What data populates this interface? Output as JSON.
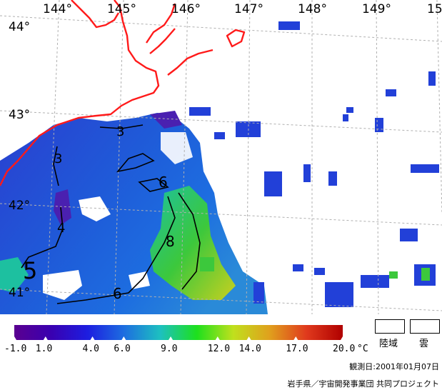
{
  "map": {
    "lon_labels": [
      "144°",
      "145°",
      "146°",
      "147°",
      "148°",
      "149°",
      "15"
    ],
    "lat_labels": [
      "44°",
      "43°",
      "42°",
      "41°"
    ],
    "contour_labels": [
      "3",
      "3",
      "4",
      "5",
      "6",
      "6",
      "8"
    ],
    "colors": {
      "coastline": "#ff1a1a",
      "graticule": "#b0b0b0",
      "ocean_cold": "#2a3fd0",
      "ocean_mid": "#1d6de0",
      "ocean_warm": "#3cc83c",
      "ocean_hot": "#c8d020"
    }
  },
  "colorbar": {
    "unit": "°C",
    "ticks": [
      "-1.0",
      "1.0",
      "4.0",
      "6.0",
      "9.0",
      "12.0",
      "14.0",
      "17.0",
      "20.0"
    ],
    "tick_values": [
      -1,
      1,
      4,
      6,
      9,
      12,
      14,
      17,
      20
    ],
    "range": [
      -1,
      20
    ],
    "colors": [
      "#5a0090",
      "#3a00b0",
      "#1d1de0",
      "#1d6de0",
      "#1dc0c0",
      "#1de01d",
      "#c0e01d",
      "#e0a01d",
      "#e03a1d",
      "#b00000"
    ]
  },
  "legend": {
    "land_label": "陸域",
    "cloud_label": "雲"
  },
  "observation_date": "観測日:2001年01月07日",
  "credit": "岩手県／宇宙開発事業団 共同プロジェクト"
}
